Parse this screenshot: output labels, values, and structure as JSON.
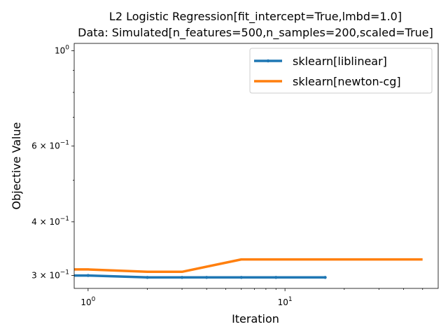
{
  "chart_data": {
    "type": "line",
    "title": "L2 Logistic Regression[fit_intercept=True,lmbd=1.0]",
    "subtitle": "Data: Simulated[n_features=500,n_samples=200,scaled=True]",
    "xlabel": "Iteration",
    "ylabel": "Objective Value",
    "xscale": "log",
    "yscale": "log",
    "xlim": [
      0.85,
      60
    ],
    "ylim": [
      0.28,
      1.04
    ],
    "legend": "top-right",
    "grid": false,
    "x_ticks": [
      {
        "value": 1,
        "base": "10",
        "exp": "0"
      },
      {
        "value": 10,
        "base": "10",
        "exp": "1"
      }
    ],
    "y_ticks": [
      {
        "value": 1.0,
        "coef": "",
        "base": "10",
        "exp": "0"
      },
      {
        "value": 0.6,
        "coef": "6 × ",
        "base": "10",
        "exp": "−1"
      },
      {
        "value": 0.4,
        "coef": "4 × ",
        "base": "10",
        "exp": "−1"
      },
      {
        "value": 0.3,
        "coef": "3 × ",
        "base": "10",
        "exp": "−1"
      }
    ],
    "series": [
      {
        "name": "sklearn[liblinear]",
        "color": "#1f77b4",
        "marker": "dot",
        "x": [
          0.85,
          1,
          2,
          3,
          4,
          6,
          9,
          16
        ],
        "y": [
          0.3,
          0.3,
          0.297,
          0.297,
          0.297,
          0.297,
          0.297,
          0.297
        ]
      },
      {
        "name": "sklearn[newton-cg]",
        "color": "#ff7f0e",
        "marker": "none",
        "x": [
          0.85,
          1,
          2,
          3,
          6,
          10,
          50
        ],
        "y": [
          0.31,
          0.31,
          0.306,
          0.306,
          0.327,
          0.327,
          0.327
        ]
      }
    ]
  }
}
